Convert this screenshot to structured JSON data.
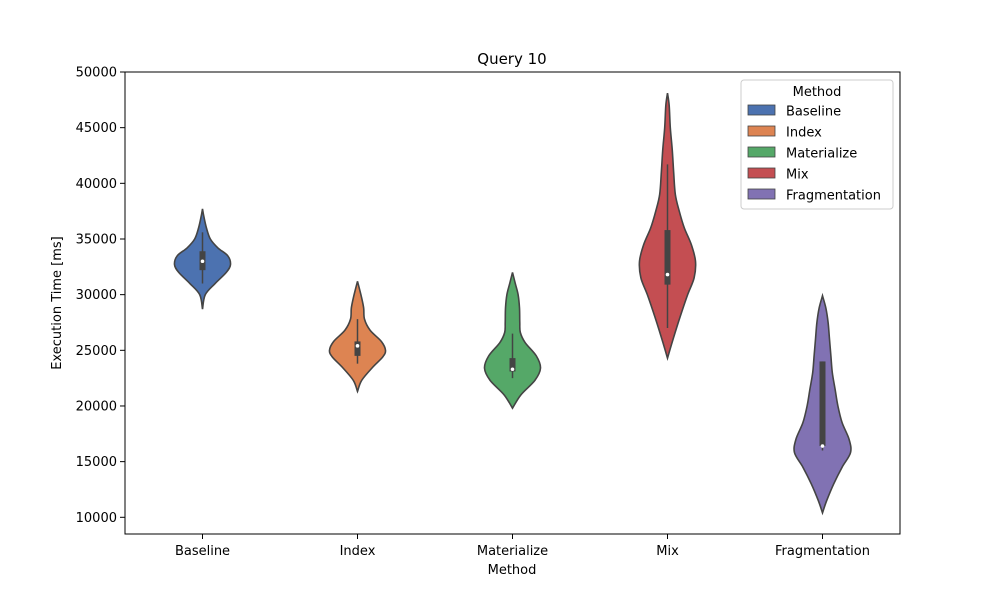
{
  "chart_data": {
    "type": "violin",
    "title": "Query 10",
    "xlabel": "Method",
    "ylabel": "Execution Time [ms]",
    "categories": [
      "Baseline",
      "Index",
      "Materialize",
      "Mix",
      "Fragmentation"
    ],
    "ylim": [
      8500,
      50000
    ],
    "yticks": [
      10000,
      15000,
      20000,
      25000,
      30000,
      35000,
      40000,
      45000,
      50000
    ],
    "grid": false,
    "legend": {
      "title": "Method",
      "position": "top-right"
    },
    "colors": [
      "#4c72b0",
      "#dd8452",
      "#55a868",
      "#c44e52",
      "#8172b3"
    ],
    "series": [
      {
        "name": "Baseline",
        "min": 28700,
        "max": 37700,
        "q1": 32200,
        "median": 33000,
        "q3": 33900,
        "whisker_low": 31000,
        "whisker_high": 35600,
        "density": [
          [
            28700,
            0
          ],
          [
            30000,
            0.1
          ],
          [
            31000,
            0.45
          ],
          [
            32000,
            0.85
          ],
          [
            32700,
            1.0
          ],
          [
            33500,
            0.9
          ],
          [
            34200,
            0.55
          ],
          [
            35000,
            0.28
          ],
          [
            36000,
            0.14
          ],
          [
            37000,
            0.05
          ],
          [
            37700,
            0
          ]
        ]
      },
      {
        "name": "Index",
        "min": 21300,
        "max": 31200,
        "q1": 24500,
        "median": 25400,
        "q3": 25800,
        "whisker_low": 23800,
        "whisker_high": 27800,
        "density": [
          [
            21300,
            0
          ],
          [
            22300,
            0.15
          ],
          [
            23500,
            0.55
          ],
          [
            24400,
            0.9
          ],
          [
            25000,
            1.0
          ],
          [
            25800,
            0.85
          ],
          [
            26800,
            0.45
          ],
          [
            27800,
            0.25
          ],
          [
            28800,
            0.22
          ],
          [
            29800,
            0.14
          ],
          [
            31200,
            0
          ]
        ]
      },
      {
        "name": "Materialize",
        "min": 19800,
        "max": 32000,
        "q1": 23100,
        "median": 23300,
        "q3": 24300,
        "whisker_low": 22500,
        "whisker_high": 26500,
        "density": [
          [
            19800,
            0
          ],
          [
            21000,
            0.3
          ],
          [
            22300,
            0.8
          ],
          [
            23400,
            1.0
          ],
          [
            24500,
            0.85
          ],
          [
            25700,
            0.45
          ],
          [
            26600,
            0.28
          ],
          [
            27500,
            0.26
          ],
          [
            28800,
            0.25
          ],
          [
            30000,
            0.2
          ],
          [
            31000,
            0.1
          ],
          [
            32000,
            0
          ]
        ]
      },
      {
        "name": "Mix",
        "min": 24300,
        "max": 48100,
        "q1": 30900,
        "median": 31800,
        "q3": 35800,
        "whisker_low": 27000,
        "whisker_high": 41700,
        "density": [
          [
            24300,
            0
          ],
          [
            26000,
            0.2
          ],
          [
            28000,
            0.45
          ],
          [
            30000,
            0.72
          ],
          [
            31500,
            0.95
          ],
          [
            33000,
            1.0
          ],
          [
            34500,
            0.85
          ],
          [
            36000,
            0.6
          ],
          [
            37500,
            0.42
          ],
          [
            39000,
            0.28
          ],
          [
            41000,
            0.22
          ],
          [
            43000,
            0.17
          ],
          [
            45000,
            0.1
          ],
          [
            47000,
            0.06
          ],
          [
            48100,
            0
          ]
        ]
      },
      {
        "name": "Fragmentation",
        "min": 10400,
        "max": 29900,
        "q1": 16400,
        "median": 16400,
        "q3": 24000,
        "whisker_low": 16000,
        "whisker_high": 24000,
        "density": [
          [
            10400,
            0
          ],
          [
            11500,
            0.15
          ],
          [
            13000,
            0.4
          ],
          [
            14500,
            0.7
          ],
          [
            15800,
            1.0
          ],
          [
            17000,
            0.95
          ],
          [
            18500,
            0.7
          ],
          [
            20000,
            0.55
          ],
          [
            21500,
            0.45
          ],
          [
            23000,
            0.35
          ],
          [
            24500,
            0.3
          ],
          [
            26000,
            0.25
          ],
          [
            27500,
            0.2
          ],
          [
            28800,
            0.12
          ],
          [
            29900,
            0
          ]
        ]
      }
    ]
  }
}
